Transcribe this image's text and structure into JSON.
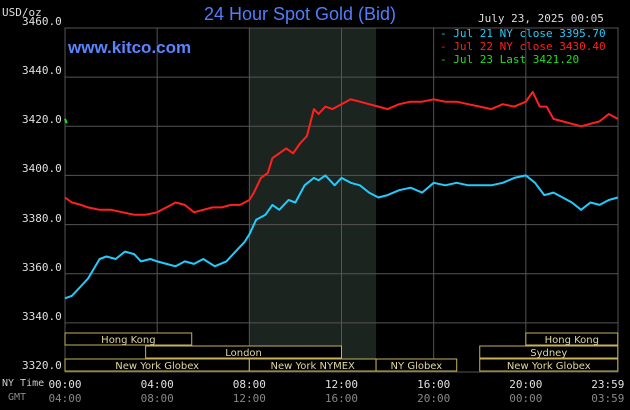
{
  "header": {
    "title": "24 Hour Spot Gold (Bid)",
    "units": "USD/oz",
    "timestamp": "July 23, 2025 00:05",
    "site": "www.kitco.com"
  },
  "legend": [
    {
      "text": "- Jul 21 NY close 3395.70",
      "color": "#22ccff"
    },
    {
      "text": "- Jul 22 NY close 3430.40",
      "color": "#ff2020"
    },
    {
      "text": "- Jul 23 Last 3421.20",
      "color": "#22dd22"
    }
  ],
  "axis": {
    "ny_time_label": "NY Time",
    "gmt_label": "GMT",
    "ny_ticks": [
      "00:00",
      "04:00",
      "08:00",
      "12:00",
      "16:00",
      "20:00",
      "23:59"
    ],
    "gmt_ticks": [
      "04:00",
      "08:00",
      "12:00",
      "16:00",
      "20:00",
      "00:00",
      "03:59"
    ]
  },
  "sessions": [
    {
      "label": "Hong Kong",
      "row": 0,
      "start": 0,
      "end": 5.5
    },
    {
      "label": "London",
      "row": 1,
      "start": 3.5,
      "end": 12.0
    },
    {
      "label": "New York Globex",
      "row": 2,
      "start": 0,
      "end": 8.0
    },
    {
      "label": "New York NYMEX",
      "row": 2,
      "start": 8.0,
      "end": 13.5
    },
    {
      "label": "NY Globex",
      "row": 2,
      "start": 13.5,
      "end": 17.0
    },
    {
      "label": "Hong Kong",
      "row": 0,
      "start": 20.0,
      "end": 23.99
    },
    {
      "label": "Sydney",
      "row": 1,
      "start": 18.0,
      "end": 23.99
    },
    {
      "label": "New York Globex",
      "row": 2,
      "start": 18.0,
      "end": 23.99
    }
  ],
  "chart_data": {
    "type": "line",
    "ylim": [
      3320,
      3460
    ],
    "yticks": [
      3320,
      3340,
      3360,
      3380,
      3400,
      3420,
      3440,
      3460
    ],
    "xlim": [
      0,
      24
    ],
    "shaded_range": [
      8.0,
      13.5
    ],
    "series": [
      {
        "name": "Jul 21 NY close 3395.70",
        "color": "#22ccff",
        "x": [
          0,
          0.3,
          0.7,
          1.0,
          1.5,
          1.8,
          2.2,
          2.6,
          3.0,
          3.3,
          3.7,
          4.0,
          4.4,
          4.8,
          5.2,
          5.6,
          6.0,
          6.5,
          7.0,
          7.4,
          7.8,
          8.0,
          8.3,
          8.7,
          9.0,
          9.3,
          9.7,
          10.0,
          10.4,
          10.8,
          11.0,
          11.3,
          11.7,
          12.0,
          12.4,
          12.8,
          13.2,
          13.6,
          14.0,
          14.5,
          15.0,
          15.5,
          16.0,
          16.5,
          17.0,
          17.5,
          18.0,
          18.5,
          19.0,
          19.5,
          20.0,
          20.4,
          20.8,
          21.2,
          21.6,
          22.0,
          22.4,
          22.8,
          23.2,
          23.6,
          23.99
        ],
        "y": [
          3350,
          3351,
          3355,
          3358,
          3366,
          3367,
          3366,
          3369,
          3368,
          3365,
          3366,
          3365,
          3364,
          3363,
          3365,
          3364,
          3366,
          3363,
          3365,
          3369,
          3373,
          3376,
          3382,
          3384,
          3388,
          3386,
          3390,
          3389,
          3396,
          3399,
          3398,
          3400,
          3396,
          3399,
          3397,
          3396,
          3393,
          3391,
          3392,
          3394,
          3395,
          3393,
          3397,
          3396,
          3397,
          3396,
          3396,
          3396,
          3397,
          3399,
          3400,
          3397,
          3392,
          3393,
          3391,
          3389,
          3386,
          3389,
          3388,
          3390,
          3391
        ]
      },
      {
        "name": "Jul 22 NY close 3430.40",
        "color": "#ff2020",
        "x": [
          0,
          0.3,
          0.7,
          1.0,
          1.5,
          2.0,
          2.5,
          3.0,
          3.5,
          4.0,
          4.4,
          4.8,
          5.2,
          5.6,
          6.0,
          6.4,
          6.8,
          7.2,
          7.6,
          8.0,
          8.2,
          8.5,
          8.8,
          9.0,
          9.3,
          9.6,
          9.9,
          10.2,
          10.5,
          10.8,
          11.0,
          11.3,
          11.6,
          12.0,
          12.4,
          12.8,
          13.2,
          13.6,
          14.0,
          14.5,
          15.0,
          15.5,
          16.0,
          16.5,
          17.0,
          17.5,
          18.0,
          18.5,
          19.0,
          19.5,
          20.0,
          20.3,
          20.6,
          20.9,
          21.2,
          21.6,
          22.0,
          22.4,
          22.8,
          23.2,
          23.6,
          23.99
        ],
        "y": [
          3391,
          3389,
          3388,
          3387,
          3386,
          3386,
          3385,
          3384,
          3384,
          3385,
          3387,
          3389,
          3388,
          3385,
          3386,
          3387,
          3387,
          3388,
          3388,
          3390,
          3393,
          3399,
          3401,
          3407,
          3409,
          3411,
          3409,
          3413,
          3416,
          3427,
          3425,
          3428,
          3427,
          3429,
          3431,
          3430,
          3429,
          3428,
          3427,
          3429,
          3430,
          3430,
          3431,
          3430,
          3430,
          3429,
          3428,
          3427,
          3429,
          3428,
          3430,
          3434,
          3428,
          3428,
          3423,
          3422,
          3421,
          3420,
          3421,
          3422,
          3425,
          3423
        ]
      },
      {
        "name": "Jul 23 Last 3421.20",
        "color": "#22dd22",
        "x": [
          0,
          0.08
        ],
        "y": [
          3423,
          3421.2
        ]
      }
    ]
  }
}
